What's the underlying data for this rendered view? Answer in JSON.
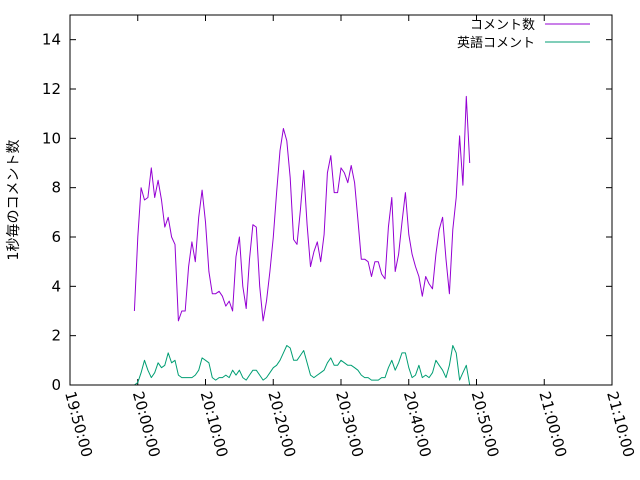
{
  "chart_data": {
    "type": "line",
    "title": "",
    "xlabel": "",
    "ylabel": "1秒毎のコメント数",
    "x_axis": {
      "type": "time",
      "min": "19:50:00",
      "max": "21:10:00",
      "ticks": [
        "19:50:00",
        "20:00:00",
        "20:10:00",
        "20:20:00",
        "20:30:00",
        "20:40:00",
        "20:50:00",
        "21:00:00",
        "21:10:00"
      ],
      "tick_label_rotation": "rotated"
    },
    "y_axis": {
      "min": 0,
      "max": 15,
      "ticks": [
        "0",
        "2",
        "4",
        "6",
        "8",
        "10",
        "12",
        "14"
      ]
    },
    "grid": false,
    "legend": {
      "position": "top-right"
    },
    "series": [
      {
        "name": "コメント数",
        "color": "#9400d3",
        "points": [
          [
            "19:59:30",
            3.0
          ],
          [
            "20:00:00",
            6.0
          ],
          [
            "20:00:30",
            8.0
          ],
          [
            "20:01:00",
            7.5
          ],
          [
            "20:01:30",
            7.6
          ],
          [
            "20:02:00",
            8.8
          ],
          [
            "20:02:30",
            7.6
          ],
          [
            "20:03:00",
            8.3
          ],
          [
            "20:03:30",
            7.5
          ],
          [
            "20:04:00",
            6.4
          ],
          [
            "20:04:30",
            6.8
          ],
          [
            "20:05:00",
            6.0
          ],
          [
            "20:05:30",
            5.7
          ],
          [
            "20:06:00",
            2.6
          ],
          [
            "20:06:30",
            3.0
          ],
          [
            "20:07:00",
            3.0
          ],
          [
            "20:07:30",
            4.8
          ],
          [
            "20:08:00",
            5.8
          ],
          [
            "20:08:30",
            5.0
          ],
          [
            "20:09:00",
            6.8
          ],
          [
            "20:09:30",
            7.9
          ],
          [
            "20:10:00",
            6.6
          ],
          [
            "20:10:30",
            4.6
          ],
          [
            "20:11:00",
            3.7
          ],
          [
            "20:11:30",
            3.7
          ],
          [
            "20:12:00",
            3.8
          ],
          [
            "20:12:30",
            3.6
          ],
          [
            "20:13:00",
            3.2
          ],
          [
            "20:13:30",
            3.4
          ],
          [
            "20:14:00",
            3.0
          ],
          [
            "20:14:30",
            5.2
          ],
          [
            "20:15:00",
            6.0
          ],
          [
            "20:15:30",
            4.0
          ],
          [
            "20:16:00",
            3.1
          ],
          [
            "20:16:30",
            5.1
          ],
          [
            "20:17:00",
            6.5
          ],
          [
            "20:17:30",
            6.4
          ],
          [
            "20:18:00",
            4.0
          ],
          [
            "20:18:30",
            2.6
          ],
          [
            "20:19:00",
            3.4
          ],
          [
            "20:19:30",
            4.6
          ],
          [
            "20:20:00",
            6.0
          ],
          [
            "20:20:30",
            7.8
          ],
          [
            "20:21:00",
            9.5
          ],
          [
            "20:21:30",
            10.4
          ],
          [
            "20:22:00",
            9.9
          ],
          [
            "20:22:30",
            8.4
          ],
          [
            "20:23:00",
            5.9
          ],
          [
            "20:23:30",
            5.7
          ],
          [
            "20:24:00",
            7.1
          ],
          [
            "20:24:30",
            8.7
          ],
          [
            "20:25:00",
            6.5
          ],
          [
            "20:25:30",
            4.8
          ],
          [
            "20:26:00",
            5.4
          ],
          [
            "20:26:30",
            5.8
          ],
          [
            "20:27:00",
            5.0
          ],
          [
            "20:27:30",
            6.1
          ],
          [
            "20:28:00",
            8.6
          ],
          [
            "20:28:30",
            9.3
          ],
          [
            "20:29:00",
            7.8
          ],
          [
            "20:29:30",
            7.8
          ],
          [
            "20:30:00",
            8.8
          ],
          [
            "20:30:30",
            8.6
          ],
          [
            "20:31:00",
            8.2
          ],
          [
            "20:31:30",
            8.9
          ],
          [
            "20:32:00",
            8.2
          ],
          [
            "20:32:30",
            6.7
          ],
          [
            "20:33:00",
            5.1
          ],
          [
            "20:33:30",
            5.1
          ],
          [
            "20:34:00",
            5.0
          ],
          [
            "20:34:30",
            4.4
          ],
          [
            "20:35:00",
            5.0
          ],
          [
            "20:35:30",
            5.0
          ],
          [
            "20:36:00",
            4.5
          ],
          [
            "20:36:30",
            4.3
          ],
          [
            "20:37:00",
            6.4
          ],
          [
            "20:37:30",
            7.6
          ],
          [
            "20:38:00",
            4.6
          ],
          [
            "20:38:30",
            5.3
          ],
          [
            "20:39:00",
            6.6
          ],
          [
            "20:39:30",
            7.8
          ],
          [
            "20:40:00",
            6.1
          ],
          [
            "20:40:30",
            5.3
          ],
          [
            "20:41:00",
            4.8
          ],
          [
            "20:41:30",
            4.4
          ],
          [
            "20:42:00",
            3.6
          ],
          [
            "20:42:30",
            4.4
          ],
          [
            "20:43:00",
            4.1
          ],
          [
            "20:43:30",
            3.9
          ],
          [
            "20:44:00",
            5.3
          ],
          [
            "20:44:30",
            6.3
          ],
          [
            "20:45:00",
            6.8
          ],
          [
            "20:45:30",
            5.1
          ],
          [
            "20:46:00",
            3.7
          ],
          [
            "20:46:30",
            6.3
          ],
          [
            "20:47:00",
            7.6
          ],
          [
            "20:47:30",
            10.1
          ],
          [
            "20:48:00",
            8.1
          ],
          [
            "20:48:30",
            11.7
          ],
          [
            "20:49:00",
            9.0
          ]
        ]
      },
      {
        "name": "英語コメント",
        "color": "#009e73",
        "points": [
          [
            "19:59:30",
            0.0
          ],
          [
            "20:00:00",
            0.1
          ],
          [
            "20:00:30",
            0.5
          ],
          [
            "20:01:00",
            1.0
          ],
          [
            "20:01:30",
            0.6
          ],
          [
            "20:02:00",
            0.3
          ],
          [
            "20:02:30",
            0.5
          ],
          [
            "20:03:00",
            0.9
          ],
          [
            "20:03:30",
            0.7
          ],
          [
            "20:04:00",
            0.8
          ],
          [
            "20:04:30",
            1.3
          ],
          [
            "20:05:00",
            0.9
          ],
          [
            "20:05:30",
            1.0
          ],
          [
            "20:06:00",
            0.4
          ],
          [
            "20:06:30",
            0.3
          ],
          [
            "20:07:00",
            0.3
          ],
          [
            "20:07:30",
            0.3
          ],
          [
            "20:08:00",
            0.3
          ],
          [
            "20:08:30",
            0.4
          ],
          [
            "20:09:00",
            0.6
          ],
          [
            "20:09:30",
            1.1
          ],
          [
            "20:10:00",
            1.0
          ],
          [
            "20:10:30",
            0.9
          ],
          [
            "20:11:00",
            0.3
          ],
          [
            "20:11:30",
            0.2
          ],
          [
            "20:12:00",
            0.3
          ],
          [
            "20:12:30",
            0.3
          ],
          [
            "20:13:00",
            0.4
          ],
          [
            "20:13:30",
            0.3
          ],
          [
            "20:14:00",
            0.6
          ],
          [
            "20:14:30",
            0.4
          ],
          [
            "20:15:00",
            0.6
          ],
          [
            "20:15:30",
            0.3
          ],
          [
            "20:16:00",
            0.2
          ],
          [
            "20:16:30",
            0.4
          ],
          [
            "20:17:00",
            0.6
          ],
          [
            "20:17:30",
            0.6
          ],
          [
            "20:18:00",
            0.4
          ],
          [
            "20:18:30",
            0.2
          ],
          [
            "20:19:00",
            0.3
          ],
          [
            "20:19:30",
            0.5
          ],
          [
            "20:20:00",
            0.7
          ],
          [
            "20:20:30",
            0.8
          ],
          [
            "20:21:00",
            1.0
          ],
          [
            "20:21:30",
            1.3
          ],
          [
            "20:22:00",
            1.6
          ],
          [
            "20:22:30",
            1.5
          ],
          [
            "20:23:00",
            1.0
          ],
          [
            "20:23:30",
            1.0
          ],
          [
            "20:24:00",
            1.2
          ],
          [
            "20:24:30",
            1.4
          ],
          [
            "20:25:00",
            0.9
          ],
          [
            "20:25:30",
            0.4
          ],
          [
            "20:26:00",
            0.3
          ],
          [
            "20:26:30",
            0.4
          ],
          [
            "20:27:00",
            0.5
          ],
          [
            "20:27:30",
            0.6
          ],
          [
            "20:28:00",
            0.9
          ],
          [
            "20:28:30",
            1.1
          ],
          [
            "20:29:00",
            0.8
          ],
          [
            "20:29:30",
            0.8
          ],
          [
            "20:30:00",
            1.0
          ],
          [
            "20:30:30",
            0.9
          ],
          [
            "20:31:00",
            0.8
          ],
          [
            "20:31:30",
            0.8
          ],
          [
            "20:32:00",
            0.7
          ],
          [
            "20:32:30",
            0.6
          ],
          [
            "20:33:00",
            0.4
          ],
          [
            "20:33:30",
            0.3
          ],
          [
            "20:34:00",
            0.3
          ],
          [
            "20:34:30",
            0.2
          ],
          [
            "20:35:00",
            0.2
          ],
          [
            "20:35:30",
            0.2
          ],
          [
            "20:36:00",
            0.3
          ],
          [
            "20:36:30",
            0.3
          ],
          [
            "20:37:00",
            0.7
          ],
          [
            "20:37:30",
            1.0
          ],
          [
            "20:38:00",
            0.6
          ],
          [
            "20:38:30",
            0.9
          ],
          [
            "20:39:00",
            1.3
          ],
          [
            "20:39:30",
            1.3
          ],
          [
            "20:40:00",
            0.7
          ],
          [
            "20:40:30",
            0.3
          ],
          [
            "20:41:00",
            0.4
          ],
          [
            "20:41:30",
            0.8
          ],
          [
            "20:42:00",
            0.3
          ],
          [
            "20:42:30",
            0.4
          ],
          [
            "20:43:00",
            0.3
          ],
          [
            "20:43:30",
            0.5
          ],
          [
            "20:44:00",
            1.0
          ],
          [
            "20:44:30",
            0.8
          ],
          [
            "20:45:00",
            0.6
          ],
          [
            "20:45:30",
            0.3
          ],
          [
            "20:46:00",
            0.8
          ],
          [
            "20:46:30",
            1.6
          ],
          [
            "20:47:00",
            1.3
          ],
          [
            "20:47:30",
            0.2
          ],
          [
            "20:48:00",
            0.5
          ],
          [
            "20:48:30",
            0.8
          ],
          [
            "20:49:00",
            0.0
          ]
        ]
      }
    ]
  }
}
